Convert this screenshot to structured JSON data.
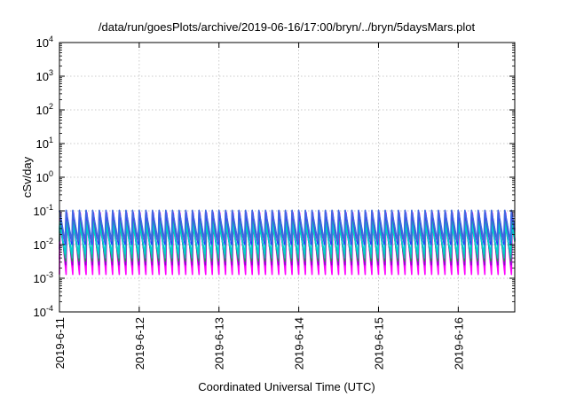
{
  "chart_data": {
    "type": "line",
    "title": "/data/run/goesPlots/archive/2019-06-16/17:00/bryn/../bryn/5daysMars.plot",
    "xlabel": "Coordinated Universal Time (UTC)",
    "ylabel": "cSv/day",
    "yscale": "log",
    "ylim": [
      0.0001,
      10000
    ],
    "y_ticks": [
      {
        "base": "10",
        "exp": "-4",
        "value": 0.0001
      },
      {
        "base": "10",
        "exp": "-3",
        "value": 0.001
      },
      {
        "base": "10",
        "exp": "-2",
        "value": 0.01
      },
      {
        "base": "10",
        "exp": "-1",
        "value": 0.1
      },
      {
        "base": "10",
        "exp": "0",
        "value": 1
      },
      {
        "base": "10",
        "exp": "1",
        "value": 10
      },
      {
        "base": "10",
        "exp": "2",
        "value": 100
      },
      {
        "base": "10",
        "exp": "3",
        "value": 1000
      },
      {
        "base": "10",
        "exp": "4",
        "value": 10000
      }
    ],
    "xlim": [
      "2019-06-11",
      "2019-06-16 17:00"
    ],
    "x_ticks": [
      "2019-6-11",
      "2019-6-12",
      "2019-6-13",
      "2019-6-14",
      "2019-6-15",
      "2019-6-16"
    ],
    "grid": true,
    "cycles_per_day": 12,
    "series": [
      {
        "color": "#ff00ff",
        "peak": 0.09,
        "trough": 0.0013
      },
      {
        "color": "#ee00ee",
        "peak": 0.07,
        "trough": 0.002
      },
      {
        "color": "#9400d3",
        "peak": 0.06,
        "trough": 0.0025
      },
      {
        "color": "#2e8b57",
        "peak": 0.05,
        "trough": 0.003
      },
      {
        "color": "#20b2aa",
        "peak": 0.05,
        "trough": 0.004
      },
      {
        "color": "#00ced1",
        "peak": 0.04,
        "trough": 0.005
      },
      {
        "color": "#1e3cff",
        "peak": 0.1,
        "trough": 0.01
      },
      {
        "color": "#4169e1",
        "peak": 0.11,
        "trough": 0.012
      }
    ]
  }
}
